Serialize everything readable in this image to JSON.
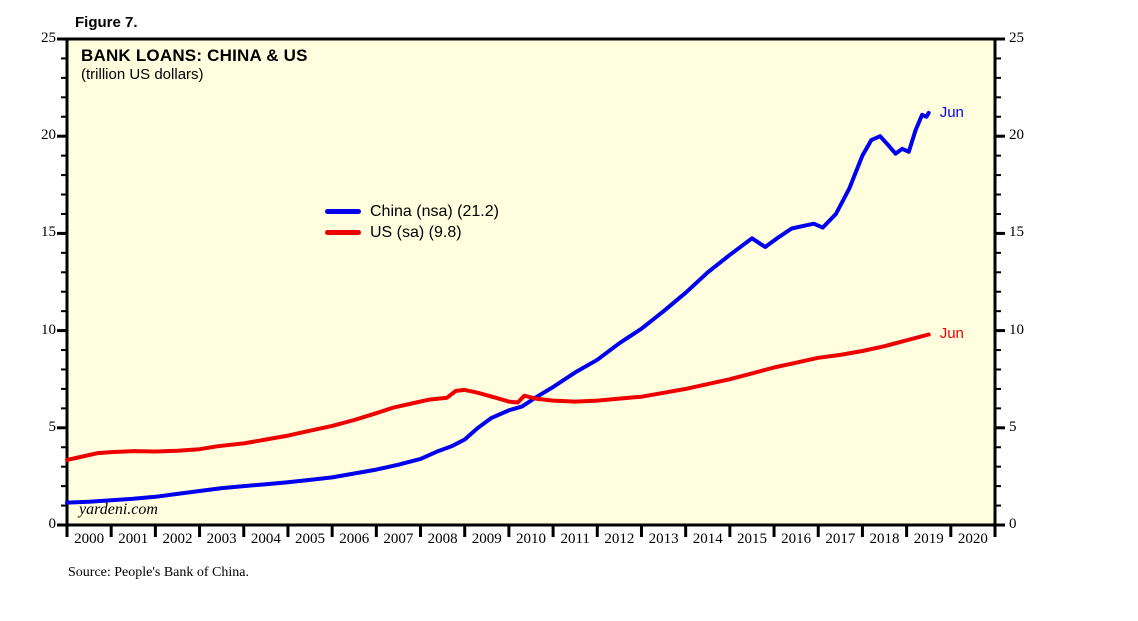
{
  "figure_label": "Figure 7.",
  "watermark": "yardeni.com",
  "source": "Source: People's Bank of China.",
  "chart_data": {
    "type": "line",
    "title": "BANK LOANS: CHINA & US",
    "subtitle": "(trillion US dollars)",
    "background_color": "#FFFFE0",
    "border_color": "#000000",
    "grid": false,
    "legend_position": "inside-center-left",
    "xlim": [
      2000,
      2021
    ],
    "ylim": [
      0,
      25
    ],
    "y_major_ticks": [
      0,
      5,
      10,
      15,
      20,
      25
    ],
    "y_minor_step": 1,
    "x_year_labels": [
      "2000",
      "2001",
      "2002",
      "2003",
      "2004",
      "2005",
      "2006",
      "2007",
      "2008",
      "2009",
      "2010",
      "2011",
      "2012",
      "2013",
      "2014",
      "2015",
      "2016",
      "2017",
      "2018",
      "2019",
      "2020"
    ],
    "series": [
      {
        "name": "China (nsa)",
        "legend_label": "China (nsa) (21.2)",
        "color": "#0000EE",
        "end_annotation": "Jun",
        "last_value": 21.2,
        "points": [
          [
            2000.0,
            1.15
          ],
          [
            2000.5,
            1.2
          ],
          [
            2001.0,
            1.27
          ],
          [
            2001.5,
            1.35
          ],
          [
            2002.0,
            1.45
          ],
          [
            2002.5,
            1.6
          ],
          [
            2003.0,
            1.75
          ],
          [
            2003.5,
            1.9
          ],
          [
            2004.0,
            2.0
          ],
          [
            2004.5,
            2.1
          ],
          [
            2005.0,
            2.2
          ],
          [
            2005.5,
            2.32
          ],
          [
            2006.0,
            2.45
          ],
          [
            2006.5,
            2.65
          ],
          [
            2007.0,
            2.85
          ],
          [
            2007.5,
            3.1
          ],
          [
            2008.0,
            3.4
          ],
          [
            2008.4,
            3.8
          ],
          [
            2008.7,
            4.05
          ],
          [
            2009.0,
            4.4
          ],
          [
            2009.3,
            5.0
          ],
          [
            2009.6,
            5.5
          ],
          [
            2010.0,
            5.9
          ],
          [
            2010.3,
            6.1
          ],
          [
            2010.6,
            6.55
          ],
          [
            2011.0,
            7.1
          ],
          [
            2011.5,
            7.85
          ],
          [
            2012.0,
            8.5
          ],
          [
            2012.5,
            9.35
          ],
          [
            2013.0,
            10.1
          ],
          [
            2013.5,
            11.0
          ],
          [
            2014.0,
            11.95
          ],
          [
            2014.5,
            13.0
          ],
          [
            2015.0,
            13.9
          ],
          [
            2015.5,
            14.75
          ],
          [
            2015.8,
            14.3
          ],
          [
            2016.1,
            14.8
          ],
          [
            2016.4,
            15.25
          ],
          [
            2016.7,
            15.4
          ],
          [
            2016.9,
            15.5
          ],
          [
            2017.1,
            15.3
          ],
          [
            2017.4,
            16.0
          ],
          [
            2017.7,
            17.3
          ],
          [
            2018.0,
            19.0
          ],
          [
            2018.2,
            19.8
          ],
          [
            2018.4,
            20.0
          ],
          [
            2018.6,
            19.5
          ],
          [
            2018.75,
            19.1
          ],
          [
            2018.9,
            19.35
          ],
          [
            2019.05,
            19.2
          ],
          [
            2019.2,
            20.3
          ],
          [
            2019.35,
            21.1
          ],
          [
            2019.45,
            21.0
          ],
          [
            2019.5,
            21.2
          ]
        ]
      },
      {
        "name": "US (sa)",
        "legend_label": "US (sa) (9.8)",
        "color": "#EE0000",
        "end_annotation": "Jun",
        "last_value": 9.8,
        "points": [
          [
            2000.0,
            3.35
          ],
          [
            2000.3,
            3.5
          ],
          [
            2000.7,
            3.7
          ],
          [
            2001.0,
            3.75
          ],
          [
            2001.5,
            3.8
          ],
          [
            2002.0,
            3.78
          ],
          [
            2002.5,
            3.82
          ],
          [
            2003.0,
            3.9
          ],
          [
            2003.4,
            4.05
          ],
          [
            2003.8,
            4.15
          ],
          [
            2004.0,
            4.2
          ],
          [
            2004.5,
            4.4
          ],
          [
            2005.0,
            4.6
          ],
          [
            2005.5,
            4.85
          ],
          [
            2006.0,
            5.1
          ],
          [
            2006.5,
            5.4
          ],
          [
            2007.0,
            5.75
          ],
          [
            2007.4,
            6.05
          ],
          [
            2007.8,
            6.25
          ],
          [
            2008.2,
            6.45
          ],
          [
            2008.6,
            6.55
          ],
          [
            2008.8,
            6.9
          ],
          [
            2009.0,
            6.95
          ],
          [
            2009.3,
            6.8
          ],
          [
            2009.7,
            6.55
          ],
          [
            2010.0,
            6.35
          ],
          [
            2010.2,
            6.3
          ],
          [
            2010.35,
            6.65
          ],
          [
            2010.6,
            6.5
          ],
          [
            2011.0,
            6.4
          ],
          [
            2011.5,
            6.35
          ],
          [
            2012.0,
            6.4
          ],
          [
            2012.5,
            6.5
          ],
          [
            2013.0,
            6.6
          ],
          [
            2013.5,
            6.8
          ],
          [
            2014.0,
            7.0
          ],
          [
            2014.5,
            7.25
          ],
          [
            2015.0,
            7.5
          ],
          [
            2015.5,
            7.8
          ],
          [
            2016.0,
            8.1
          ],
          [
            2016.5,
            8.35
          ],
          [
            2017.0,
            8.6
          ],
          [
            2017.5,
            8.75
          ],
          [
            2018.0,
            8.95
          ],
          [
            2018.5,
            9.2
          ],
          [
            2019.0,
            9.5
          ],
          [
            2019.5,
            9.8
          ]
        ]
      }
    ]
  }
}
